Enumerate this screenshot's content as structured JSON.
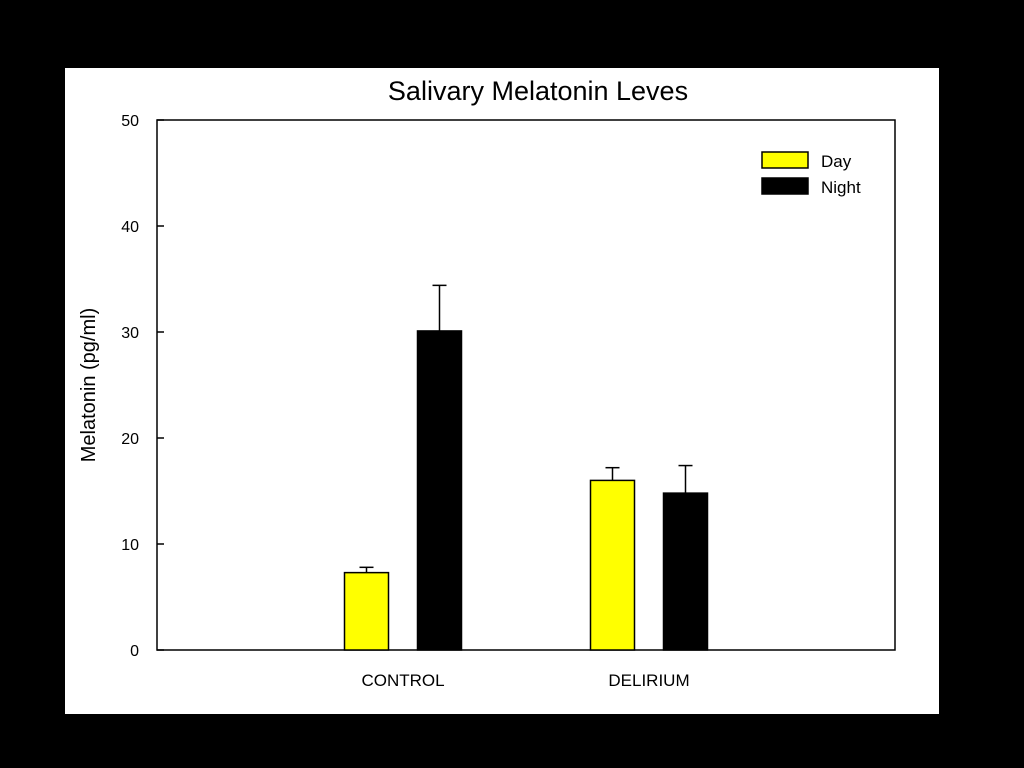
{
  "chart_data": {
    "type": "bar",
    "title": "Salivary Melatonin Leves",
    "xlabel": "",
    "ylabel": "Melatonin (pg/ml)",
    "ylim": [
      0,
      50
    ],
    "yticks": [
      0,
      10,
      20,
      30,
      40,
      50
    ],
    "categories": [
      "CONTROL",
      "DELIRIUM"
    ],
    "series": [
      {
        "name": "Day",
        "color": "#ffff00",
        "values": [
          7.3,
          16.0
        ],
        "errors": [
          0.5,
          1.2
        ]
      },
      {
        "name": "Night",
        "color": "#000000",
        "values": [
          30.1,
          14.8
        ],
        "errors": [
          4.3,
          2.6
        ]
      }
    ],
    "legend_position": "top-right",
    "grid": false,
    "error_bars": "upper"
  }
}
